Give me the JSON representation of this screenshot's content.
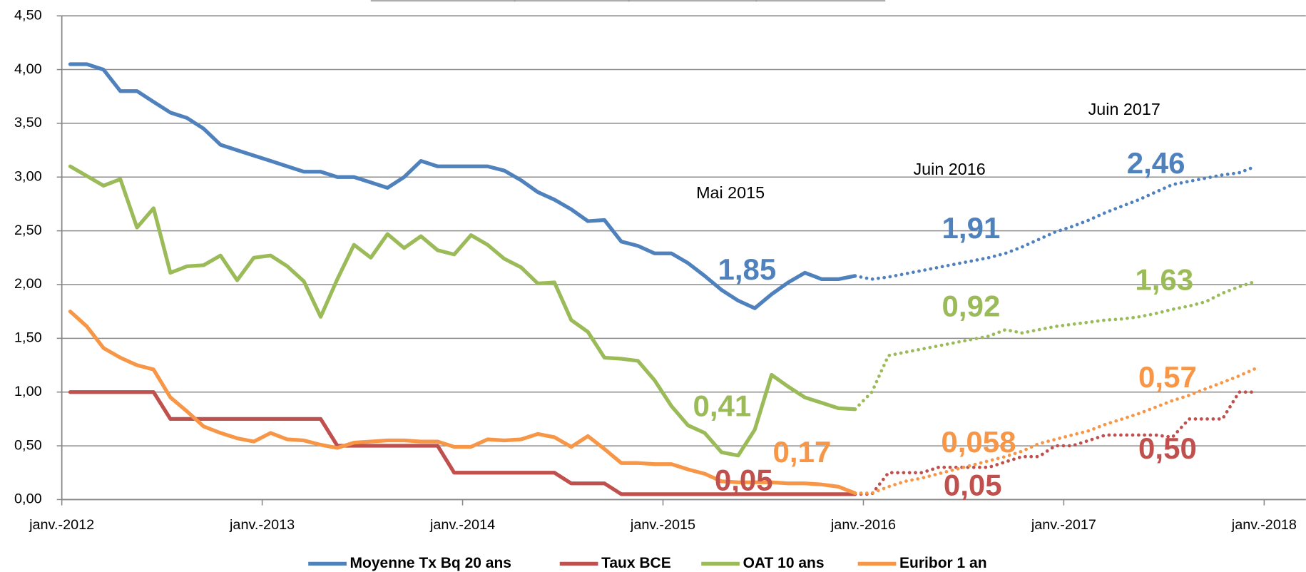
{
  "chart_data": {
    "type": "line",
    "x": [
      2012.042,
      2012.125,
      2012.208,
      2012.292,
      2012.375,
      2012.458,
      2012.542,
      2012.625,
      2012.708,
      2012.792,
      2012.875,
      2012.958,
      2013.042,
      2013.125,
      2013.208,
      2013.292,
      2013.375,
      2013.458,
      2013.542,
      2013.625,
      2013.708,
      2013.792,
      2013.875,
      2013.958,
      2014.042,
      2014.125,
      2014.208,
      2014.292,
      2014.375,
      2014.458,
      2014.542,
      2014.625,
      2014.708,
      2014.792,
      2014.875,
      2014.958,
      2015.042,
      2015.125,
      2015.208,
      2015.292,
      2015.375,
      2015.458,
      2015.542,
      2015.625,
      2015.708,
      2015.792,
      2015.875,
      2015.958,
      2016.042,
      2016.125,
      2016.208,
      2016.292,
      2016.375,
      2016.458,
      2016.542,
      2016.625,
      2016.708,
      2016.792,
      2016.875,
      2016.958,
      2017.042,
      2017.125,
      2017.208,
      2017.292,
      2017.375,
      2017.458,
      2017.542,
      2017.625,
      2017.708,
      2017.792,
      2017.875,
      2017.958
    ],
    "xlim": [
      2012,
      2018
    ],
    "xticks": [
      {
        "value": 2012,
        "label": "janv.-2012"
      },
      {
        "value": 2013,
        "label": "janv.-2013"
      },
      {
        "value": 2014,
        "label": "janv.-2014"
      },
      {
        "value": 2015,
        "label": "janv.-2015"
      },
      {
        "value": 2016,
        "label": "janv.-2016"
      },
      {
        "value": 2017,
        "label": "janv.-2017"
      },
      {
        "value": 2018,
        "label": "janv.-2018"
      }
    ],
    "ylim": [
      0,
      4.5
    ],
    "yticks": [
      {
        "value": 0,
        "label": "0,00"
      },
      {
        "value": 0.5,
        "label": "0,50"
      },
      {
        "value": 1,
        "label": "1,00"
      },
      {
        "value": 1.5,
        "label": "1,50"
      },
      {
        "value": 2,
        "label": "2,00"
      },
      {
        "value": 2.5,
        "label": "2,50"
      },
      {
        "value": 3,
        "label": "3,00"
      },
      {
        "value": 3.5,
        "label": "3,50"
      },
      {
        "value": 4,
        "label": "4,00"
      },
      {
        "value": 4.5,
        "label": "4,50"
      }
    ],
    "grid": true,
    "legend": "bottom",
    "series": [
      {
        "name": "Moyenne Tx Bq 20 ans",
        "color": "#4f81bd",
        "values": [
          4.05,
          4.05,
          4.0,
          3.8,
          3.8,
          3.7,
          3.6,
          3.55,
          3.45,
          3.3,
          3.25,
          3.2,
          3.15,
          3.1,
          3.05,
          3.05,
          3.0,
          3.0,
          2.95,
          2.9,
          3.0,
          3.15,
          3.1,
          3.1,
          3.1,
          3.1,
          3.06,
          2.97,
          2.86,
          2.79,
          2.7,
          2.59,
          2.6,
          2.4,
          2.36,
          2.29,
          2.29,
          2.2,
          2.08,
          1.95,
          1.85,
          1.78,
          1.91,
          2.02,
          2.11,
          2.05,
          2.05,
          2.08,
          null,
          null,
          null,
          null,
          null,
          null,
          null,
          null,
          null,
          null,
          null,
          null,
          null,
          null,
          null,
          null,
          null,
          null,
          null,
          null,
          null,
          null,
          null,
          null
        ],
        "forecast": [
          null,
          null,
          null,
          null,
          null,
          null,
          null,
          null,
          null,
          null,
          null,
          null,
          null,
          null,
          null,
          null,
          null,
          null,
          null,
          null,
          null,
          null,
          null,
          null,
          null,
          null,
          null,
          null,
          null,
          null,
          null,
          null,
          null,
          null,
          null,
          null,
          null,
          null,
          null,
          null,
          null,
          null,
          null,
          null,
          null,
          null,
          null,
          2.08,
          2.05,
          2.07,
          2.1,
          2.13,
          2.16,
          2.19,
          2.22,
          2.25,
          2.29,
          2.35,
          2.42,
          2.49,
          2.54,
          2.6,
          2.67,
          2.73,
          2.79,
          2.86,
          2.93,
          2.96,
          2.99,
          3.02,
          3.04,
          3.1
        ]
      },
      {
        "name": "Taux BCE",
        "color": "#c0504d",
        "values": [
          1.0,
          1.0,
          1.0,
          1.0,
          1.0,
          1.0,
          0.75,
          0.75,
          0.75,
          0.75,
          0.75,
          0.75,
          0.75,
          0.75,
          0.75,
          0.75,
          0.5,
          0.5,
          0.5,
          0.5,
          0.5,
          0.5,
          0.5,
          0.25,
          0.25,
          0.25,
          0.25,
          0.25,
          0.25,
          0.25,
          0.15,
          0.15,
          0.15,
          0.05,
          0.05,
          0.05,
          0.05,
          0.05,
          0.05,
          0.05,
          0.05,
          0.05,
          0.05,
          0.05,
          0.05,
          0.05,
          0.05,
          0.05,
          null,
          null,
          null,
          null,
          null,
          null,
          null,
          null,
          null,
          null,
          null,
          null,
          null,
          null,
          null,
          null,
          null,
          null,
          null,
          null,
          null,
          null,
          null,
          null
        ],
        "forecast": [
          null,
          null,
          null,
          null,
          null,
          null,
          null,
          null,
          null,
          null,
          null,
          null,
          null,
          null,
          null,
          null,
          null,
          null,
          null,
          null,
          null,
          null,
          null,
          null,
          null,
          null,
          null,
          null,
          null,
          null,
          null,
          null,
          null,
          null,
          null,
          null,
          null,
          null,
          null,
          null,
          null,
          null,
          null,
          null,
          null,
          null,
          null,
          0.05,
          0.05,
          0.25,
          0.25,
          0.25,
          0.3,
          0.3,
          0.3,
          0.3,
          0.35,
          0.4,
          0.4,
          0.5,
          0.5,
          0.55,
          0.6,
          0.6,
          0.6,
          0.6,
          0.58,
          0.75,
          0.75,
          0.75,
          1.0,
          1.0
        ]
      },
      {
        "name": "OAT 10 ans",
        "color": "#9bbb59",
        "values": [
          3.1,
          3.01,
          2.92,
          2.98,
          2.53,
          2.71,
          2.11,
          2.17,
          2.18,
          2.27,
          2.04,
          2.25,
          2.27,
          2.17,
          2.03,
          1.7,
          2.05,
          2.37,
          2.25,
          2.47,
          2.34,
          2.45,
          2.32,
          2.28,
          2.46,
          2.37,
          2.24,
          2.16,
          2.01,
          2.02,
          1.67,
          1.56,
          1.32,
          1.31,
          1.29,
          1.11,
          0.87,
          0.69,
          0.62,
          0.44,
          0.41,
          0.65,
          1.16,
          1.05,
          0.95,
          0.9,
          0.85,
          0.84,
          null,
          null,
          null,
          null,
          null,
          null,
          null,
          null,
          null,
          null,
          null,
          null,
          null,
          null,
          null,
          null,
          null,
          null,
          null,
          null,
          null,
          null,
          null,
          null
        ],
        "forecast": [
          null,
          null,
          null,
          null,
          null,
          null,
          null,
          null,
          null,
          null,
          null,
          null,
          null,
          null,
          null,
          null,
          null,
          null,
          null,
          null,
          null,
          null,
          null,
          null,
          null,
          null,
          null,
          null,
          null,
          null,
          null,
          null,
          null,
          null,
          null,
          null,
          null,
          null,
          null,
          null,
          null,
          null,
          null,
          null,
          null,
          null,
          null,
          0.84,
          1.0,
          1.34,
          1.37,
          1.4,
          1.43,
          1.46,
          1.49,
          1.52,
          1.58,
          1.55,
          1.58,
          1.61,
          1.63,
          1.65,
          1.67,
          1.68,
          1.7,
          1.73,
          1.77,
          1.8,
          1.84,
          1.92,
          1.98,
          2.03
        ]
      },
      {
        "name": "Euribor 1 an",
        "color": "#f79646",
        "values": [
          1.75,
          1.61,
          1.41,
          1.32,
          1.25,
          1.21,
          0.95,
          0.82,
          0.68,
          0.62,
          0.57,
          0.54,
          0.62,
          0.56,
          0.55,
          0.51,
          0.48,
          0.53,
          0.54,
          0.55,
          0.55,
          0.54,
          0.54,
          0.49,
          0.49,
          0.56,
          0.55,
          0.56,
          0.61,
          0.58,
          0.49,
          0.59,
          0.47,
          0.34,
          0.34,
          0.33,
          0.33,
          0.28,
          0.24,
          0.17,
          0.16,
          0.16,
          0.16,
          0.15,
          0.15,
          0.14,
          0.12,
          0.06,
          null,
          null,
          null,
          null,
          null,
          null,
          null,
          null,
          null,
          null,
          null,
          null,
          null,
          null,
          null,
          null,
          null,
          null,
          null,
          null,
          null,
          null,
          null,
          null
        ],
        "forecast": [
          null,
          null,
          null,
          null,
          null,
          null,
          null,
          null,
          null,
          null,
          null,
          null,
          null,
          null,
          null,
          null,
          null,
          null,
          null,
          null,
          null,
          null,
          null,
          null,
          null,
          null,
          null,
          null,
          null,
          null,
          null,
          null,
          null,
          null,
          null,
          null,
          null,
          null,
          null,
          null,
          null,
          null,
          null,
          null,
          null,
          null,
          null,
          0.06,
          0.06,
          0.12,
          0.17,
          0.2,
          0.24,
          0.28,
          0.32,
          0.36,
          0.4,
          0.45,
          0.52,
          0.56,
          0.6,
          0.64,
          0.7,
          0.75,
          0.8,
          0.86,
          0.92,
          0.97,
          1.03,
          1.09,
          1.15,
          1.22
        ]
      }
    ],
    "annotations": [
      {
        "text": "Mai 2015",
        "color": "#000000"
      },
      {
        "text": "Juin 2016",
        "color": "#000000"
      },
      {
        "text": "Juin 2017",
        "color": "#000000"
      },
      {
        "text": "1,85",
        "color": "#4f81bd"
      },
      {
        "text": "1,91",
        "color": "#4f81bd"
      },
      {
        "text": "2,46",
        "color": "#4f81bd"
      },
      {
        "text": "0,41",
        "color": "#9bbb59"
      },
      {
        "text": "0,92",
        "color": "#9bbb59"
      },
      {
        "text": "1,63",
        "color": "#9bbb59"
      },
      {
        "text": "0,17",
        "color": "#f79646"
      },
      {
        "text": "0,058",
        "color": "#f79646"
      },
      {
        "text": "0,57",
        "color": "#f79646"
      },
      {
        "text": "0,05",
        "color": "#c0504d"
      },
      {
        "text": "0,05",
        "color": "#c0504d"
      },
      {
        "text": "0,50",
        "color": "#c0504d"
      }
    ]
  }
}
